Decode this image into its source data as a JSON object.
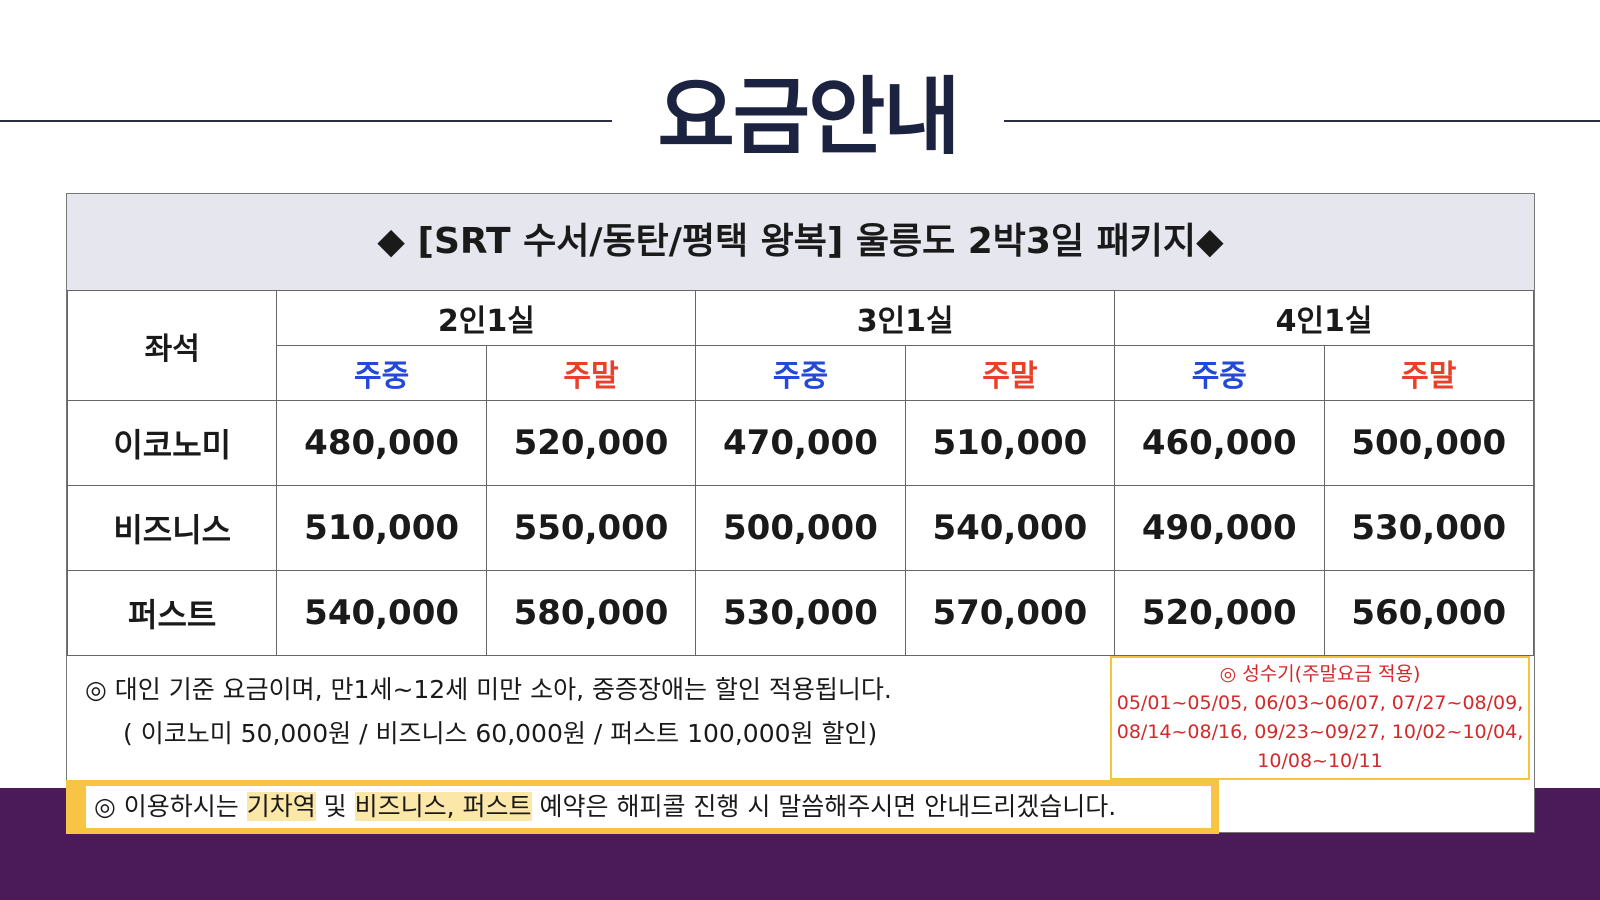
{
  "page": {
    "title": "요금안내",
    "colors": {
      "title": "#1c2340",
      "header_bg": "#e6e7ee",
      "weekday": "#2349d6",
      "weekend": "#e8402a",
      "accent_yellow": "#f7c445",
      "band_purple": "#4a1b58",
      "peak_text": "#d22a2a"
    }
  },
  "package": {
    "header": "◆ [SRT 수서/동탄/평택 왕복] 울릉도 2박3일 패키지◆"
  },
  "table": {
    "seat_label": "좌석",
    "room_types": [
      "2인1실",
      "3인1실",
      "4인1실"
    ],
    "day_types": [
      "주중",
      "주말",
      "주중",
      "주말",
      "주중",
      "주말"
    ],
    "rows": [
      {
        "label": "이코노미",
        "values": [
          "480,000",
          "520,000",
          "470,000",
          "510,000",
          "460,000",
          "500,000"
        ]
      },
      {
        "label": "비즈니스",
        "values": [
          "510,000",
          "550,000",
          "500,000",
          "540,000",
          "490,000",
          "530,000"
        ]
      },
      {
        "label": "퍼스트",
        "values": [
          "540,000",
          "580,000",
          "530,000",
          "570,000",
          "520,000",
          "560,000"
        ]
      }
    ]
  },
  "notes": {
    "line1": "◎ 대인 기준 요금이며, 만1세~12세 미만 소아, 중증장애는 할인 적용됩니다.",
    "line2": "( 이코노미 50,000원 / 비즈니스 60,000원 / 퍼스트 100,000원 할인)"
  },
  "peak": {
    "title": "◎ 성수기(주말요금 적용)",
    "line1": "05/01~05/05, 06/03~06/07, 07/27~08/09,",
    "line2": "08/14~08/16, 09/23~09/27, 10/02~10/04,",
    "line3": "10/08~10/11"
  },
  "info": {
    "prefix": "◎ 이용하시는 ",
    "hl1": "기차역",
    "mid": " 및 ",
    "hl2": "비즈니스, 퍼스트",
    "suffix": " 예약은 해피콜 진행 시 말씀해주시면 안내드리겠습니다."
  }
}
